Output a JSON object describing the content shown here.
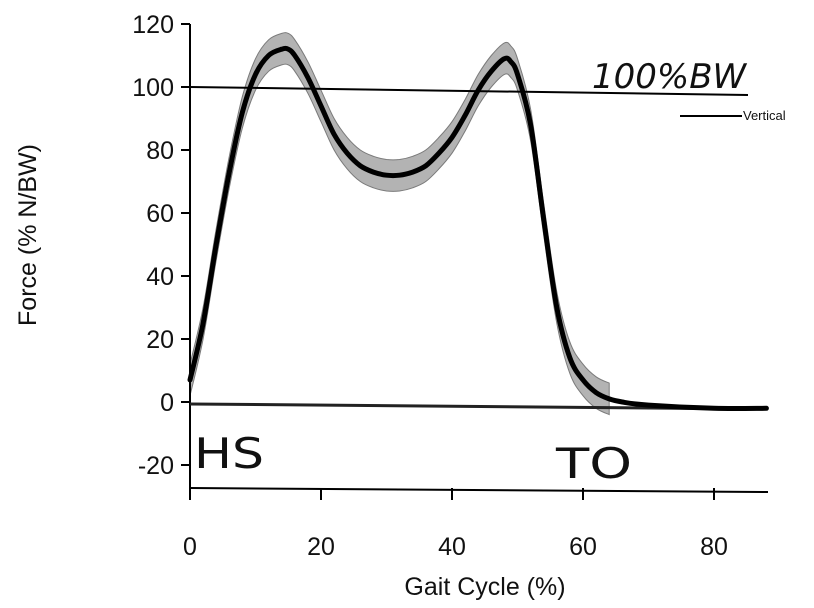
{
  "chart_data": {
    "type": "line",
    "title": "",
    "xlabel": "Gait Cycle (%)",
    "ylabel": "Force (% N/BW)",
    "xlim": [
      0,
      88
    ],
    "ylim": [
      -20,
      120
    ],
    "xticks": [
      0,
      20,
      40,
      60,
      80
    ],
    "yticks": [
      -20,
      0,
      20,
      40,
      60,
      80,
      100,
      120
    ],
    "grid": false,
    "legend": {
      "placement": "right",
      "entries": [
        "Vertical"
      ]
    },
    "series": [
      {
        "name": "Vertical",
        "color": "#000000",
        "x": [
          0,
          2,
          4,
          6,
          8,
          10,
          12,
          14,
          15,
          16,
          18,
          20,
          22,
          24,
          26,
          28,
          30,
          32,
          34,
          36,
          38,
          40,
          42,
          44,
          46,
          48,
          49,
          50,
          52,
          54,
          56,
          58,
          60,
          62,
          64,
          66,
          70,
          80,
          88
        ],
        "y": [
          7,
          25,
          50,
          73,
          92,
          104,
          110,
          112,
          112,
          110,
          103,
          94,
          85,
          79,
          75,
          73,
          72,
          72,
          73,
          75,
          79,
          84,
          91,
          99,
          105,
          109,
          108,
          104,
          88,
          58,
          30,
          14,
          7,
          3,
          1,
          0,
          -1,
          -2,
          -2
        ],
        "band": 5
      }
    ],
    "reference_lines": [
      {
        "y": 100,
        "label": "100%BW"
      }
    ],
    "annotations": [
      "HS",
      "TO"
    ]
  }
}
